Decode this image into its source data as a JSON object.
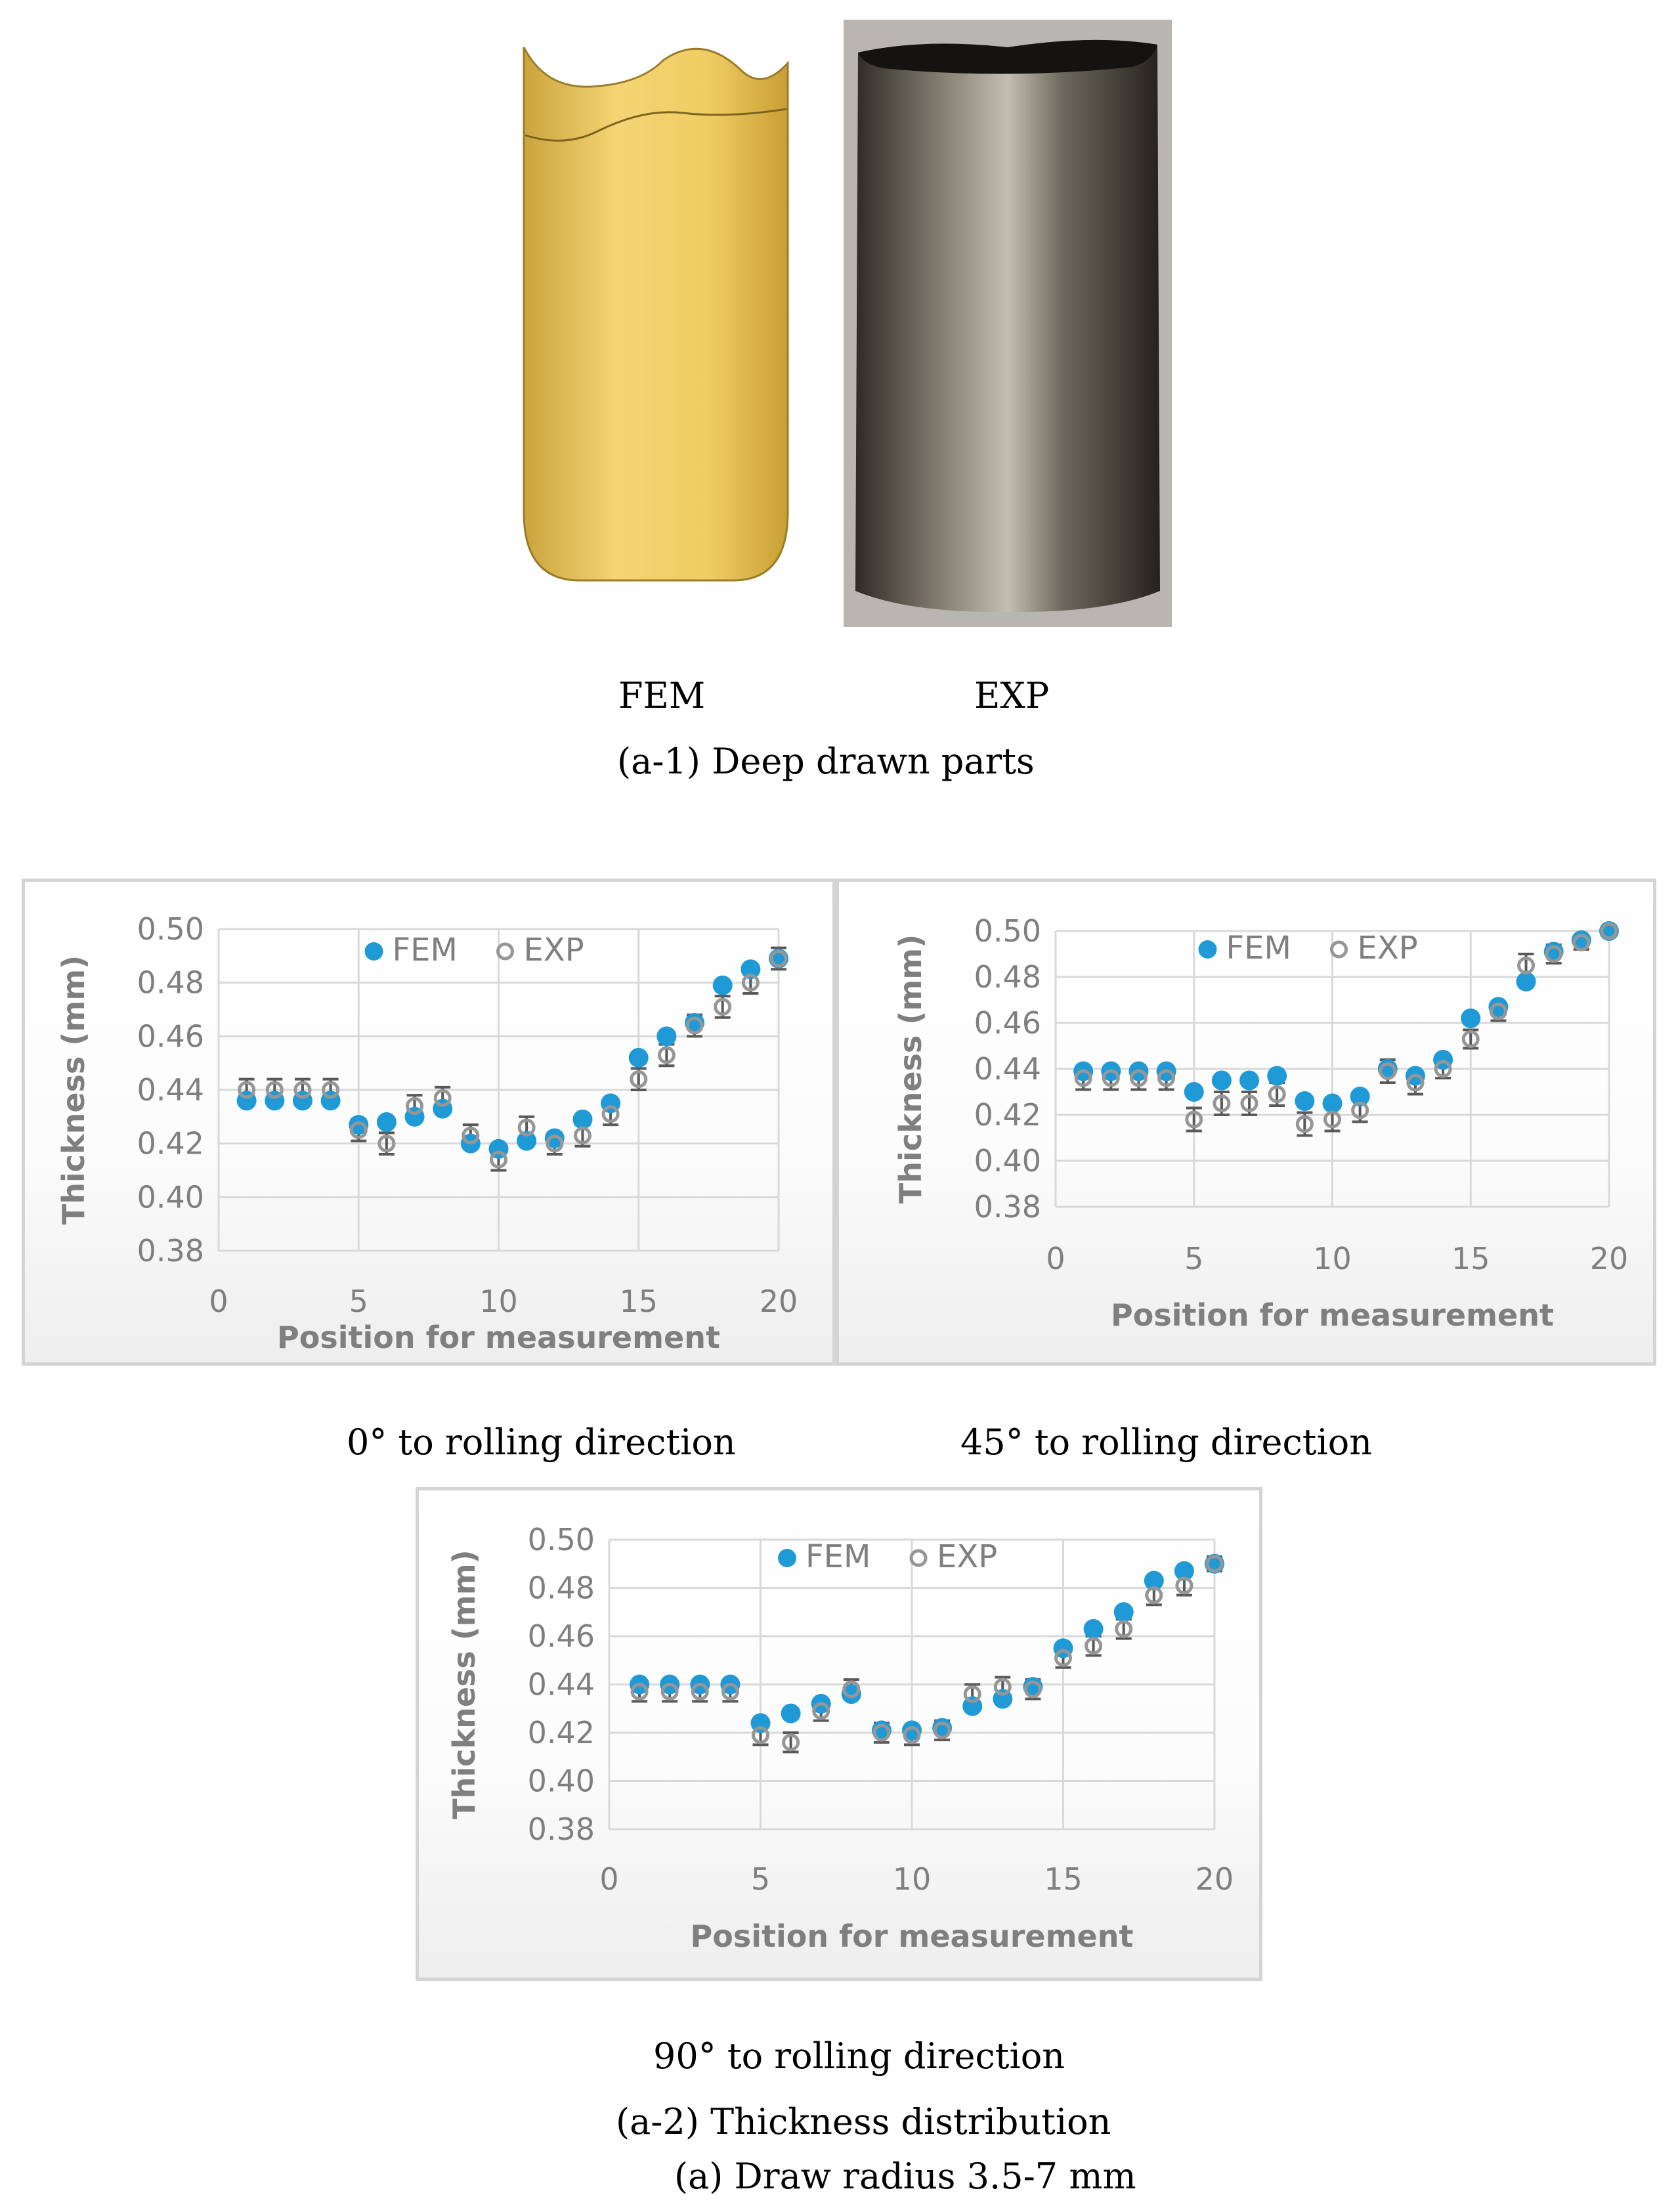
{
  "photos": {
    "fem_label": "FEM",
    "exp_label": "EXP",
    "caption": "(a-1) Deep drawn parts"
  },
  "captions": {
    "chart0": "0° to rolling direction",
    "chart45": "45° to rolling direction",
    "chart90": "90° to rolling direction",
    "section": "(a-2) Thickness distribution",
    "figure": "(a) Draw radius 3.5-7 mm"
  },
  "colors": {
    "fem": "#1f9ad6",
    "exp": "#969696",
    "grid": "#d9d9d9",
    "cup_fem": "#f2cf6a",
    "cup_exp": "#6e6a60"
  },
  "chart_data": [
    {
      "type": "scatter",
      "title": "",
      "xlabel": "Position for measurement",
      "ylabel": "Thickness (mm)",
      "xlim": [
        0,
        20
      ],
      "ylim": [
        0.38,
        0.5
      ],
      "xticks": [
        0,
        5,
        10,
        15,
        20
      ],
      "yticks": [
        0.38,
        0.4,
        0.42,
        0.44,
        0.46,
        0.48,
        0.5
      ],
      "tick_decimals": 2,
      "grid": true,
      "legend": "top-center",
      "x": [
        1,
        2,
        3,
        4,
        5,
        6,
        7,
        8,
        9,
        10,
        11,
        12,
        13,
        14,
        15,
        16,
        17,
        18,
        19,
        20
      ],
      "series": [
        {
          "name": "FEM",
          "values": [
            0.436,
            0.436,
            0.436,
            0.436,
            0.427,
            0.428,
            0.43,
            0.433,
            0.42,
            0.418,
            0.421,
            0.422,
            0.429,
            0.435,
            0.452,
            0.46,
            0.465,
            0.479,
            0.485,
            0.489
          ]
        },
        {
          "name": "EXP",
          "values": [
            0.44,
            0.44,
            0.44,
            0.44,
            0.425,
            0.42,
            0.434,
            0.437,
            0.423,
            0.414,
            0.426,
            0.42,
            0.423,
            0.431,
            0.444,
            0.453,
            0.464,
            0.471,
            0.48,
            0.489
          ],
          "error": [
            0.004,
            0.004,
            0.004,
            0.004,
            0.004,
            0.004,
            0.004,
            0.004,
            0.004,
            0.004,
            0.004,
            0.004,
            0.004,
            0.004,
            0.004,
            0.004,
            0.004,
            0.004,
            0.004,
            0.004
          ]
        }
      ]
    },
    {
      "type": "scatter",
      "title": "",
      "xlabel": "Position for measurement",
      "ylabel": "Thickness (mm)",
      "xlim": [
        0,
        20
      ],
      "ylim": [
        0.38,
        0.5
      ],
      "xticks": [
        0,
        5,
        10,
        15,
        20
      ],
      "yticks": [
        0.38,
        0.4,
        0.42,
        0.44,
        0.46,
        0.48,
        0.5
      ],
      "tick_decimals": 2,
      "grid": true,
      "legend": "top-center",
      "x": [
        1,
        2,
        3,
        4,
        5,
        6,
        7,
        8,
        9,
        10,
        11,
        12,
        13,
        14,
        15,
        16,
        17,
        18,
        19,
        20
      ],
      "series": [
        {
          "name": "FEM",
          "values": [
            0.439,
            0.439,
            0.439,
            0.439,
            0.43,
            0.435,
            0.435,
            0.437,
            0.426,
            0.425,
            0.428,
            0.44,
            0.437,
            0.444,
            0.462,
            0.467,
            0.478,
            0.491,
            0.496,
            0.5
          ]
        },
        {
          "name": "EXP",
          "values": [
            0.436,
            0.436,
            0.436,
            0.436,
            0.418,
            0.425,
            0.425,
            0.429,
            0.416,
            0.418,
            0.422,
            0.439,
            0.434,
            0.44,
            0.453,
            0.465,
            0.485,
            0.49,
            0.495,
            0.5
          ],
          "error": [
            0.005,
            0.005,
            0.005,
            0.005,
            0.005,
            0.005,
            0.005,
            0.005,
            0.005,
            0.005,
            0.005,
            0.005,
            0.005,
            0.004,
            0.004,
            0.004,
            0.005,
            0.004,
            0.003,
            0.002
          ]
        }
      ]
    },
    {
      "type": "scatter",
      "title": "",
      "xlabel": "Position for measurement",
      "ylabel": "Thickness (mm)",
      "xlim": [
        0,
        20
      ],
      "ylim": [
        0.38,
        0.5
      ],
      "xticks": [
        0,
        5,
        10,
        15,
        20
      ],
      "yticks": [
        0.38,
        0.4,
        0.42,
        0.44,
        0.46,
        0.48,
        0.5
      ],
      "tick_decimals": 2,
      "grid": true,
      "legend": "top-center",
      "x": [
        1,
        2,
        3,
        4,
        5,
        6,
        7,
        8,
        9,
        10,
        11,
        12,
        13,
        14,
        15,
        16,
        17,
        18,
        19,
        20
      ],
      "series": [
        {
          "name": "FEM",
          "values": [
            0.44,
            0.44,
            0.44,
            0.44,
            0.424,
            0.428,
            0.432,
            0.436,
            0.421,
            0.421,
            0.422,
            0.431,
            0.434,
            0.439,
            0.455,
            0.463,
            0.47,
            0.483,
            0.487,
            0.49
          ]
        },
        {
          "name": "EXP",
          "values": [
            0.437,
            0.437,
            0.437,
            0.437,
            0.419,
            0.416,
            0.429,
            0.438,
            0.42,
            0.419,
            0.421,
            0.436,
            0.439,
            0.438,
            0.451,
            0.456,
            0.463,
            0.477,
            0.481,
            0.49
          ],
          "error": [
            0.004,
            0.004,
            0.004,
            0.004,
            0.004,
            0.004,
            0.004,
            0.004,
            0.004,
            0.004,
            0.004,
            0.004,
            0.004,
            0.004,
            0.004,
            0.004,
            0.004,
            0.004,
            0.004,
            0.003
          ]
        }
      ]
    }
  ]
}
